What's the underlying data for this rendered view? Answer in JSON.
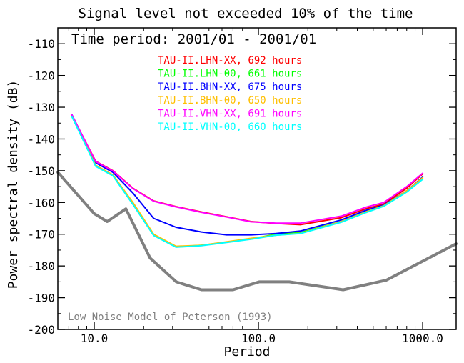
{
  "chart_data": {
    "type": "line",
    "title": "Signal level not exceeded 10% of the time",
    "subtitle": "Time period: 2001/01 - 2001/01",
    "xlabel": "Period",
    "ylabel": "Power spectral density (dB)",
    "x_scale": "log",
    "xlim": [
      6.0,
      1600.0
    ],
    "ylim": [
      -200,
      -105
    ],
    "x_ticks": [
      {
        "value": 10,
        "label": "10.0"
      },
      {
        "value": 100,
        "label": "100.0"
      },
      {
        "value": 1000,
        "label": "1000.0"
      }
    ],
    "y_ticks": [
      {
        "value": -110,
        "label": "-110"
      },
      {
        "value": -120,
        "label": "-120"
      },
      {
        "value": -130,
        "label": "-130"
      },
      {
        "value": -140,
        "label": "-140"
      },
      {
        "value": -150,
        "label": "-150"
      },
      {
        "value": -160,
        "label": "-160"
      },
      {
        "value": -170,
        "label": "-170"
      },
      {
        "value": -180,
        "label": "-180"
      },
      {
        "value": -190,
        "label": "-190"
      },
      {
        "value": -200,
        "label": "-200"
      }
    ],
    "legend_position": "top-center",
    "series": [
      {
        "name": "TAU-II.LHN-XX, 692 hours",
        "color": "#ff0000",
        "x": [
          7.3,
          10.2,
          13.0,
          17.2,
          23.0,
          31.5,
          45.0,
          64.0,
          90.0,
          128.0,
          180.0,
          320.0,
          450.0,
          580.0,
          800.0,
          1000.0
        ],
        "y": [
          -132.5,
          -147.0,
          -150.0,
          -155.5,
          -159.5,
          -161.3,
          -163.0,
          -164.5,
          -166.0,
          -166.6,
          -167.0,
          -164.8,
          -162.0,
          -160.5,
          -155.5,
          -151.0
        ]
      },
      {
        "name": "TAU-II.LHN-00, 661 hours",
        "color": "#00ff00",
        "x": [
          7.3,
          10.2,
          13.0,
          17.2,
          23.0,
          31.5,
          45.0,
          64.0,
          90.0,
          128.0,
          180.0,
          320.0,
          450.0,
          580.0,
          800.0,
          1000.0
        ],
        "y": [
          -132.8,
          -148.5,
          -151.5,
          -160.5,
          -170.3,
          -174.0,
          -173.5,
          -172.5,
          -171.5,
          -170.0,
          -169.5,
          -166.0,
          -163.0,
          -161.0,
          -156.5,
          -152.5
        ]
      },
      {
        "name": "TAU-II.BHN-XX, 675 hours",
        "color": "#0000ff",
        "x": [
          7.3,
          10.2,
          13.0,
          17.2,
          23.0,
          31.5,
          45.0,
          64.0,
          90.0,
          128.0,
          180.0,
          320.0,
          450.0,
          580.0,
          800.0,
          1000.0
        ],
        "y": [
          -132.3,
          -147.5,
          -150.5,
          -157.0,
          -165.0,
          -167.8,
          -169.3,
          -170.2,
          -170.2,
          -169.8,
          -169.0,
          -165.5,
          -162.5,
          -160.8,
          -156.3,
          -152.0
        ]
      },
      {
        "name": "TAU-II.BHN-00, 650 hours",
        "color": "#ffbf00",
        "x": [
          7.3,
          10.2,
          13.0,
          17.2,
          23.0,
          31.5,
          45.0,
          64.0,
          90.0,
          128.0,
          180.0,
          320.0,
          450.0,
          580.0,
          800.0,
          1000.0
        ],
        "y": [
          -132.6,
          -148.3,
          -151.3,
          -160.0,
          -170.0,
          -173.8,
          -173.5,
          -172.4,
          -171.3,
          -170.3,
          -169.7,
          -166.0,
          -163.0,
          -161.0,
          -156.3,
          -152.2
        ]
      },
      {
        "name": "TAU-II.VHN-XX, 691 hours",
        "color": "#ff00ff",
        "x": [
          7.3,
          10.2,
          13.0,
          17.2,
          23.0,
          31.5,
          45.0,
          64.0,
          90.0,
          128.0,
          180.0,
          320.0,
          450.0,
          580.0,
          800.0,
          1000.0
        ],
        "y": [
          -132.4,
          -147.1,
          -150.1,
          -155.6,
          -159.6,
          -161.4,
          -163.1,
          -164.6,
          -166.1,
          -166.5,
          -166.5,
          -164.3,
          -161.5,
          -160.0,
          -155.0,
          -150.8
        ]
      },
      {
        "name": "TAU-II.VHN-00, 660 hours",
        "color": "#00ffff",
        "x": [
          7.3,
          10.2,
          13.0,
          17.2,
          23.0,
          31.5,
          45.0,
          64.0,
          90.0,
          128.0,
          180.0,
          320.0,
          450.0,
          580.0,
          800.0,
          1000.0
        ],
        "y": [
          -132.9,
          -148.6,
          -151.6,
          -160.6,
          -170.4,
          -174.1,
          -173.6,
          -172.6,
          -171.6,
          -170.3,
          -169.8,
          -166.2,
          -163.2,
          -161.2,
          -156.7,
          -152.7
        ]
      },
      {
        "name": "Low Noise Model of Peterson (1993)",
        "color": "#808080",
        "x": [
          6.0,
          10.0,
          12.0,
          15.6,
          21.9,
          31.6,
          45.0,
          70.0,
          101.0,
          154.0,
          328.0,
          600.0,
          1600.0
        ],
        "y": [
          -150.5,
          -163.5,
          -166.0,
          -162.0,
          -177.5,
          -185.0,
          -187.5,
          -187.5,
          -185.0,
          -185.0,
          -187.5,
          -184.5,
          -173.0
        ]
      }
    ]
  }
}
